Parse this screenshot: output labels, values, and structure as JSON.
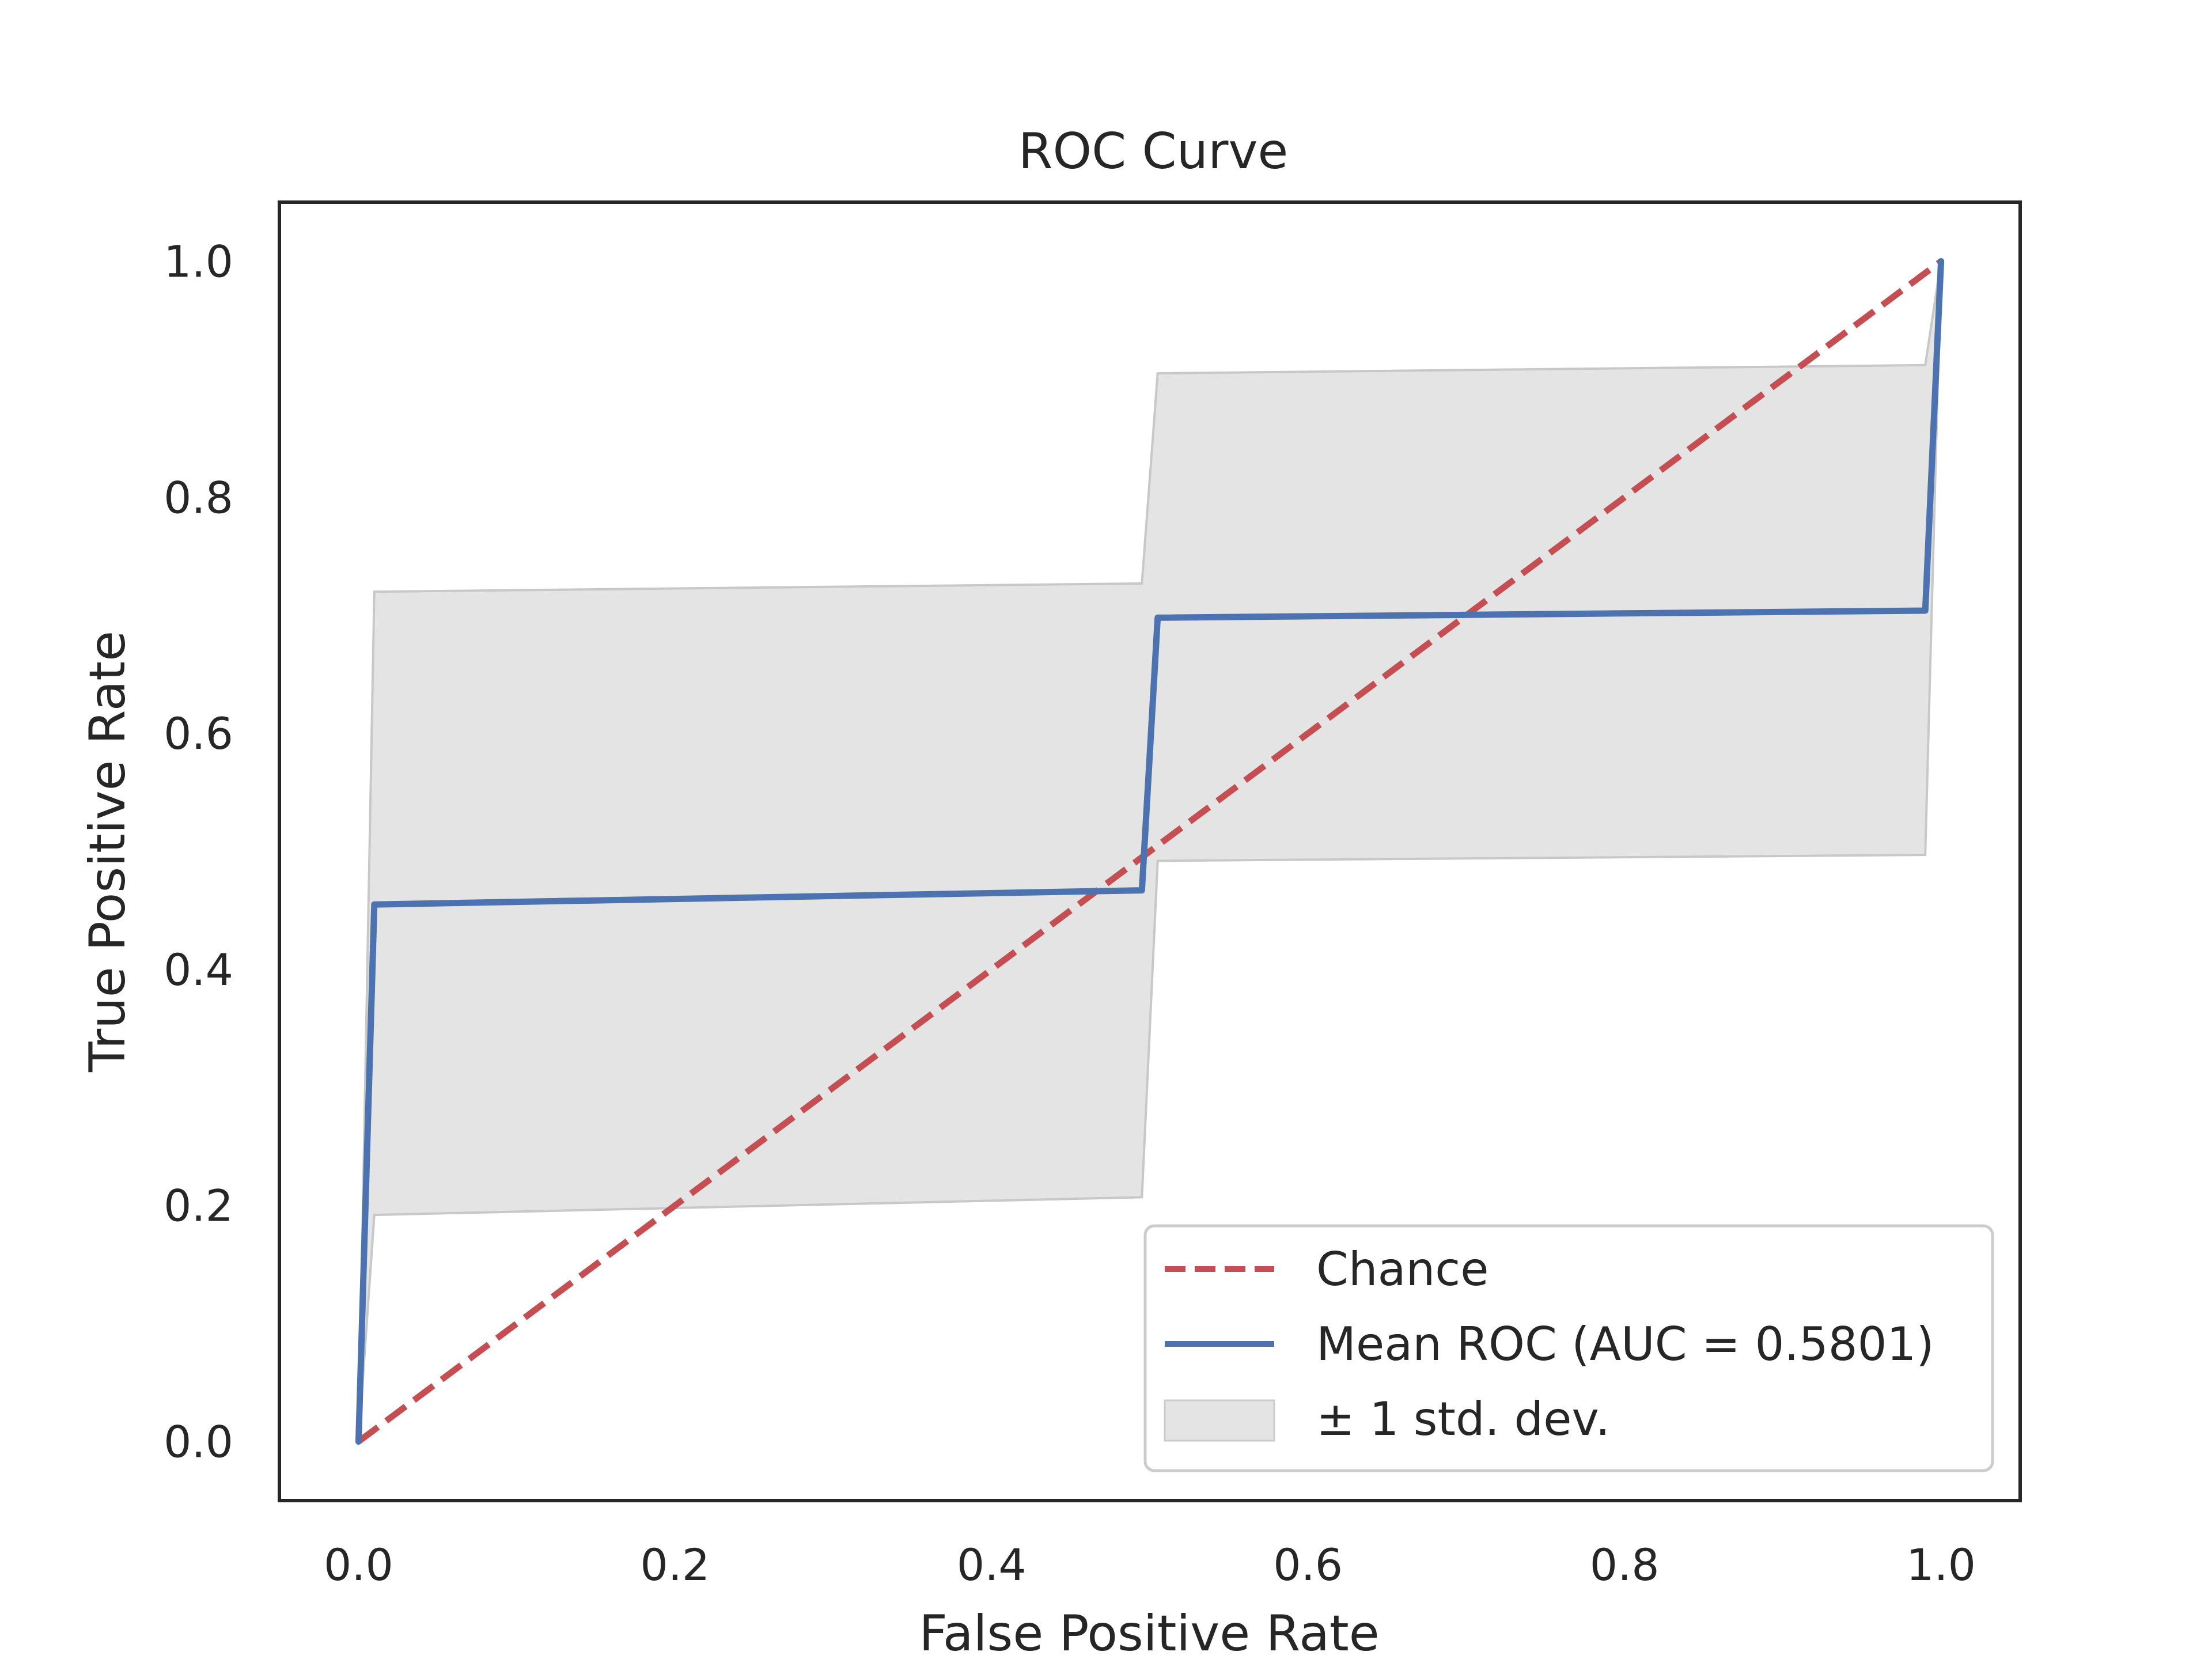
{
  "chart_data": {
    "type": "line",
    "title": "ROC Curve",
    "xlabel": "False Positive Rate",
    "ylabel": "True Positive Rate",
    "xlim": [
      -0.05,
      1.05
    ],
    "ylim": [
      -0.05,
      1.05
    ],
    "xticks": [
      "0.0",
      "0.2",
      "0.4",
      "0.6",
      "0.8",
      "1.0"
    ],
    "yticks": [
      "0.0",
      "0.2",
      "0.4",
      "0.6",
      "0.8",
      "1.0"
    ],
    "grid": false,
    "legend_position": "lower-right",
    "series": [
      {
        "name": "Chance",
        "style": "dashed",
        "color": "#c44e52",
        "x": [
          0,
          1
        ],
        "y": [
          0,
          1
        ]
      },
      {
        "name": "Mean ROC (AUC = 0.5801)",
        "style": "solid",
        "color": "#4c72b0",
        "x": [
          0.0,
          0.01,
          0.495,
          0.505,
          0.99,
          1.0
        ],
        "y": [
          0.0,
          0.455,
          0.467,
          0.698,
          0.704,
          1.0
        ]
      }
    ],
    "band": {
      "name": "± 1 std. dev.",
      "color": "#d9d9d9",
      "x": [
        0.0,
        0.01,
        0.495,
        0.505,
        0.99,
        1.0
      ],
      "upper": [
        0.0,
        0.72,
        0.727,
        0.905,
        0.912,
        1.0
      ],
      "lower": [
        0.0,
        0.192,
        0.207,
        0.492,
        0.497,
        1.0
      ]
    }
  }
}
